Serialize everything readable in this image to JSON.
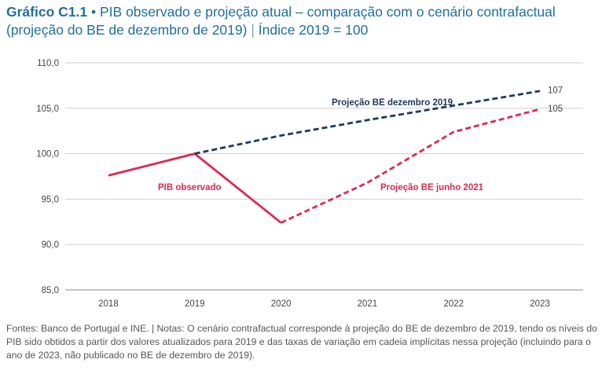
{
  "title": {
    "label": "Gráfico C1.1",
    "bullet": "•",
    "text": "PIB observado e projeção atual – comparação com o cenário contrafactual (projeção do BE de dezembro de 2019)",
    "separator": "|",
    "unit": "Índice 2019 = 100"
  },
  "chart_data": {
    "type": "line",
    "categories": [
      "2018",
      "2019",
      "2020",
      "2021",
      "2022",
      "2023"
    ],
    "ylim": [
      85,
      110
    ],
    "yticks": [
      85,
      90,
      95,
      100,
      105,
      110
    ],
    "ytick_labels": [
      "85,0",
      "90,0",
      "95,0",
      "100,0",
      "105,0",
      "110,0"
    ],
    "grid": true,
    "colors": {
      "observed": "#e0284f",
      "june2021": "#e0284f",
      "dec2019": "#1b3a63"
    },
    "series": [
      {
        "key": "observed",
        "name": "PIB observado",
        "style": "solid",
        "x": [
          0,
          1,
          2
        ],
        "values": [
          97.6,
          100.0,
          92.4
        ]
      },
      {
        "key": "june2021",
        "name": "Projeção BE junho 2021",
        "style": "dashed",
        "x": [
          2,
          3,
          4,
          5
        ],
        "values": [
          92.4,
          96.8,
          102.4,
          104.9
        ]
      },
      {
        "key": "dec2019",
        "name": "Projeção BE dezembro 2019",
        "style": "dashed",
        "x": [
          1,
          2,
          3,
          4,
          5
        ],
        "values": [
          100.0,
          102.0,
          103.7,
          105.3,
          106.9
        ]
      }
    ],
    "end_labels": [
      {
        "text": "107",
        "value": 107
      },
      {
        "text": "105",
        "value": 105
      }
    ]
  },
  "footnote": "Fontes: Banco de Portugal e INE.  |  Notas: O cenário contrafactual corresponde à projeção do BE de dezembro de 2019, tendo os níveis do PIB sido obtidos a partir dos valores atualizados para 2019 e das taxas de variação em cadeia implícitas nessa projeção (incluindo para o ano de 2023, não publicado no BE de dezembro de 2019)."
}
